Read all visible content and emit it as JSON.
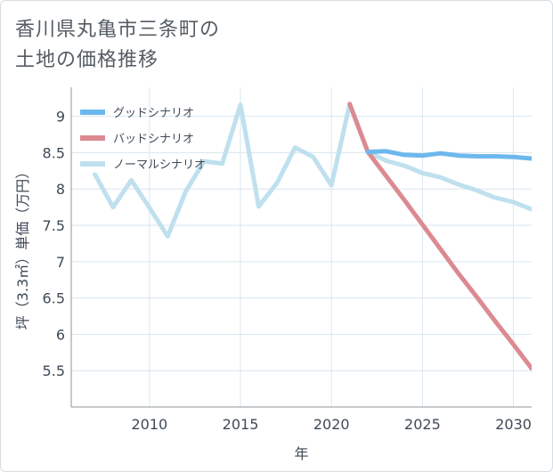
{
  "title_lines": [
    "香川県丸亀市三条町の",
    "土地の価格推移"
  ],
  "colors": {
    "good": "#6cb8ee",
    "bad": "#dc8a92",
    "normal": "#bfe0ee",
    "grid": "#d8e6ef",
    "axis": "#8d969e"
  },
  "chart_data": {
    "type": "line",
    "title": "香川県丸亀市三条町の土地の価格推移",
    "xlabel": "年",
    "ylabel": "坪（3.3㎡）単価（万円）",
    "xlim": [
      2005.7,
      2031
    ],
    "ylim": [
      5.0,
      9.4
    ],
    "x_ticks": [
      2010,
      2015,
      2020,
      2025,
      2030
    ],
    "y_ticks": [
      5.5,
      6,
      6.5,
      7,
      7.5,
      8,
      8.5,
      9
    ],
    "grid": true,
    "legend_position": "top-left",
    "series": [
      {
        "name": "グッドシナリオ",
        "color_key": "good",
        "x": [
          2022,
          2023,
          2024,
          2025,
          2026,
          2027,
          2028,
          2029,
          2030,
          2031
        ],
        "y": [
          8.51,
          8.52,
          8.47,
          8.46,
          8.49,
          8.46,
          8.45,
          8.45,
          8.44,
          8.42
        ]
      },
      {
        "name": "バッドシナリオ",
        "color_key": "bad",
        "x": [
          2021,
          2022,
          2023,
          2024,
          2025,
          2026,
          2027,
          2028,
          2029,
          2030,
          2031
        ],
        "y": [
          9.17,
          8.51,
          8.18,
          7.85,
          7.51,
          7.17,
          6.83,
          6.51,
          6.18,
          5.86,
          5.53
        ]
      },
      {
        "name": "ノーマルシナリオ",
        "color_key": "normal",
        "x": [
          2007,
          2008,
          2009,
          2010,
          2011,
          2012,
          2013,
          2014,
          2015,
          2016,
          2017,
          2018,
          2019,
          2020,
          2021,
          2022,
          2023,
          2024,
          2025,
          2026,
          2027,
          2028,
          2029,
          2030,
          2031
        ],
        "y": [
          8.2,
          7.75,
          8.12,
          7.74,
          7.35,
          7.97,
          8.38,
          8.35,
          9.16,
          7.76,
          8.08,
          8.57,
          8.44,
          8.05,
          9.17,
          8.51,
          8.39,
          8.32,
          8.22,
          8.16,
          8.06,
          7.98,
          7.88,
          7.82,
          7.72
        ]
      }
    ]
  }
}
